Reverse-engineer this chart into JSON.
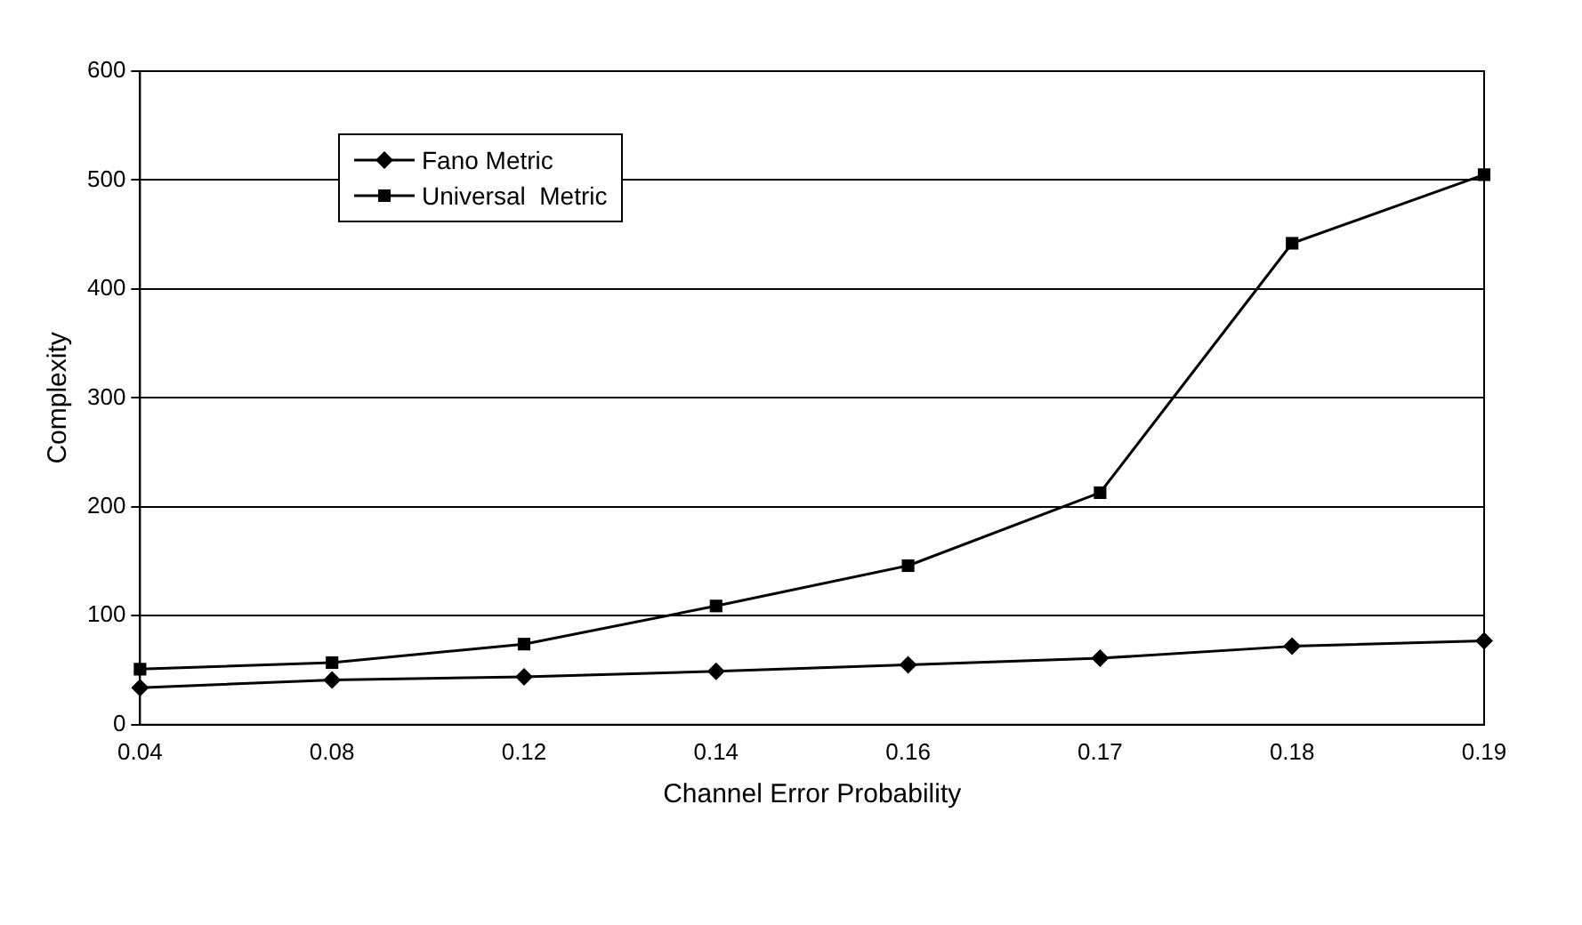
{
  "chart_data": {
    "type": "line",
    "xlabel": "Channel Error Probability",
    "ylabel": "Complexity",
    "categories": [
      "0.04",
      "0.08",
      "0.12",
      "0.14",
      "0.16",
      "0.17",
      "0.18",
      "0.19"
    ],
    "series": [
      {
        "name": "Fano Metric",
        "color": "#000000",
        "marker": "diamond",
        "values": [
          34,
          41,
          44,
          49,
          55,
          61,
          72,
          77
        ]
      },
      {
        "name": "Universal  Metric",
        "color": "#000000",
        "marker": "square",
        "values": [
          51,
          57,
          74,
          109,
          146,
          213,
          442,
          505
        ]
      }
    ],
    "ylim": [
      0,
      600
    ],
    "yticks": [
      0,
      100,
      200,
      300,
      400,
      500,
      600
    ],
    "grid": "y",
    "legend": "top left",
    "line_style": "solid"
  }
}
